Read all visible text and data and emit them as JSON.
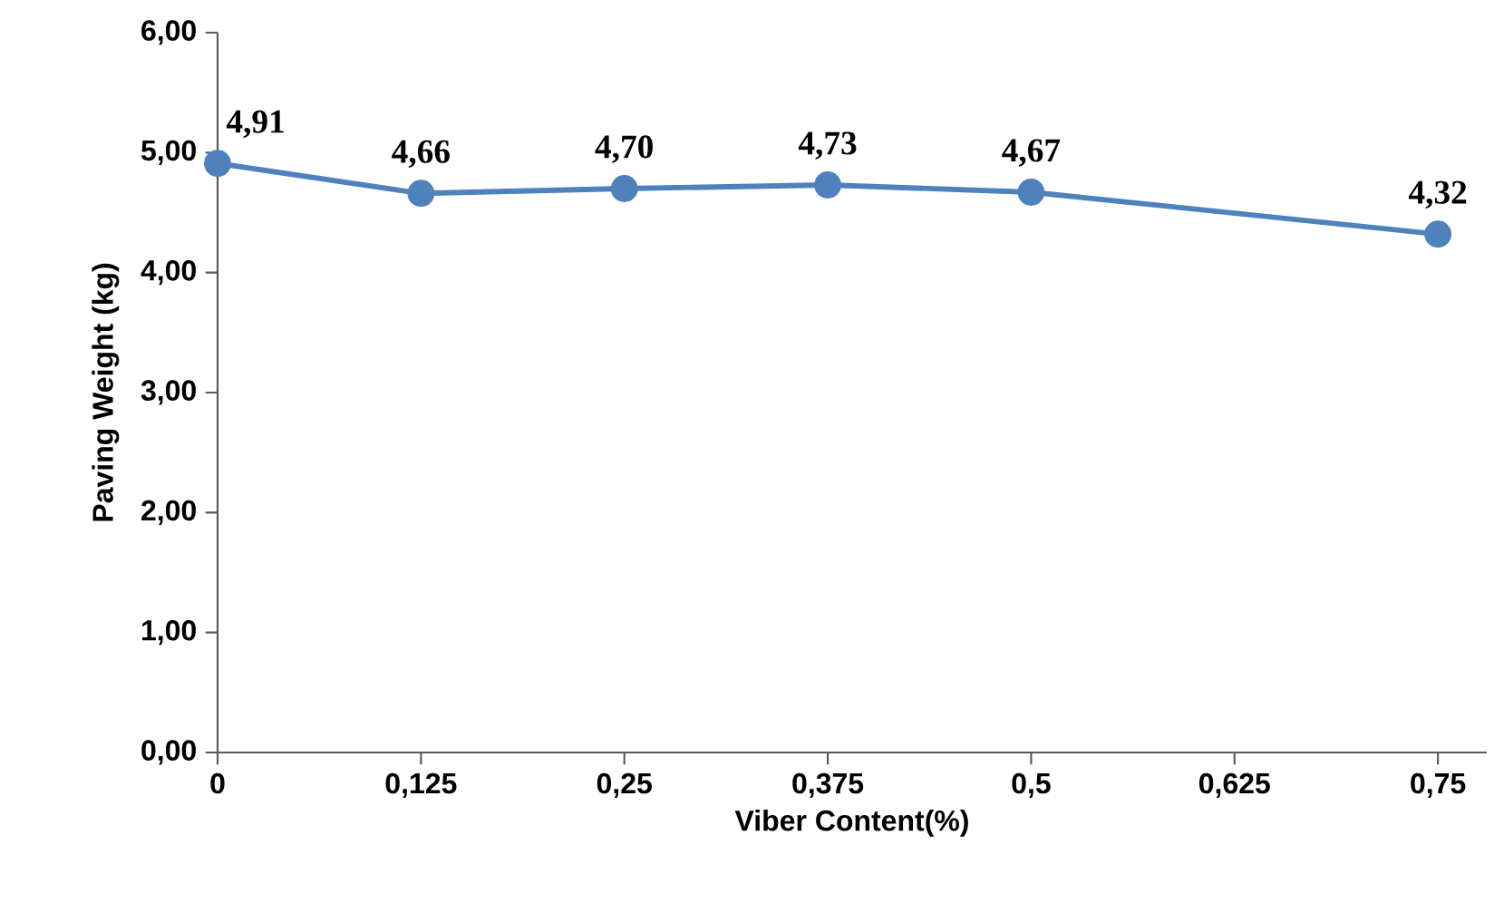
{
  "chart_data": {
    "type": "line",
    "xlabel": "Viber Content(%)",
    "ylabel": "Paving Weight (kg)",
    "x": [
      0,
      0.125,
      0.25,
      0.375,
      0.5,
      0.75
    ],
    "series": [
      {
        "color": "#4f81bd",
        "values": [
          4.91,
          4.66,
          4.7,
          4.73,
          4.67,
          4.32
        ],
        "value_labels": [
          "4,91",
          "4,66",
          "4,70",
          "4,73",
          "4,67",
          "4,32"
        ]
      }
    ],
    "xlim": [
      0,
      0.78
    ],
    "xticks": [
      {
        "value": 0,
        "label": "0"
      },
      {
        "value": 0.125,
        "label": "0,125"
      },
      {
        "value": 0.25,
        "label": "0,25"
      },
      {
        "value": 0.375,
        "label": "0,375"
      },
      {
        "value": 0.5,
        "label": "0,5"
      },
      {
        "value": 0.625,
        "label": "0,625"
      },
      {
        "value": 0.75,
        "label": "0,75"
      }
    ],
    "ylim": [
      0,
      6
    ],
    "yticks": [
      {
        "value": 0,
        "label": "0,00"
      },
      {
        "value": 1,
        "label": "1,00"
      },
      {
        "value": 2,
        "label": "2,00"
      },
      {
        "value": 3,
        "label": "3,00"
      },
      {
        "value": 4,
        "label": "4,00"
      },
      {
        "value": 5,
        "label": "5,00"
      },
      {
        "value": 6,
        "label": "6,00"
      }
    ],
    "marker": "circle",
    "line_style": "solid",
    "grid": false
  }
}
